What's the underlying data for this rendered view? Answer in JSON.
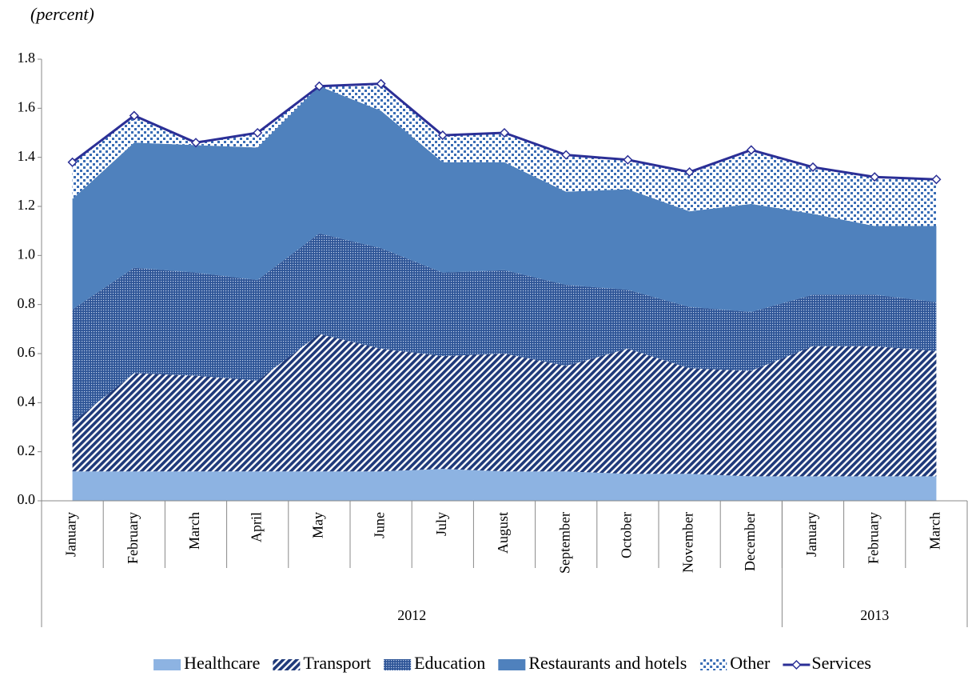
{
  "chart_data": {
    "type": "area",
    "stacked": true,
    "ylabel": "(percent)",
    "categories": [
      "January",
      "February",
      "March",
      "April",
      "May",
      "June",
      "July",
      "August",
      "September",
      "October",
      "November",
      "December",
      "January",
      "February",
      "March"
    ],
    "groups": [
      {
        "label": "2012",
        "size": 12
      },
      {
        "label": "2013",
        "size": 3
      }
    ],
    "ylim": [
      0,
      1.8
    ],
    "yticks": [
      {
        "value": 0,
        "label": "0.0"
      },
      0.2,
      0.4,
      0.6,
      0.8,
      {
        "value": 1,
        "label": "1.0"
      },
      1.2,
      1.4,
      1.6,
      1.8
    ],
    "grid": false,
    "legend": "bottom",
    "series": [
      {
        "name": "Healthcare",
        "color": "#8db3e2",
        "pattern": "solid",
        "values": [
          0.12,
          0.12,
          0.12,
          0.12,
          0.12,
          0.12,
          0.13,
          0.12,
          0.12,
          0.11,
          0.11,
          0.1,
          0.1,
          0.1,
          0.1
        ]
      },
      {
        "name": "Transport",
        "color": "#1f3a7a",
        "pattern": "stripes",
        "values": [
          0.2,
          0.4,
          0.39,
          0.37,
          0.56,
          0.5,
          0.46,
          0.48,
          0.43,
          0.51,
          0.43,
          0.43,
          0.53,
          0.53,
          0.51
        ]
      },
      {
        "name": "Education",
        "color": "#2e5597",
        "pattern": "dots",
        "values": [
          0.46,
          0.43,
          0.42,
          0.41,
          0.41,
          0.41,
          0.34,
          0.34,
          0.33,
          0.24,
          0.25,
          0.24,
          0.21,
          0.21,
          0.2
        ]
      },
      {
        "name": "Restaurants and hotels",
        "color": "#4f81bd",
        "pattern": "solid",
        "values": [
          0.45,
          0.51,
          0.52,
          0.54,
          0.6,
          0.56,
          0.45,
          0.44,
          0.38,
          0.41,
          0.39,
          0.44,
          0.33,
          0.28,
          0.31
        ]
      },
      {
        "name": "Other",
        "color": "#3a6db5",
        "pattern": "checker",
        "values": [
          0.15,
          0.11,
          0.01,
          0.06,
          0.0,
          0.11,
          0.11,
          0.12,
          0.15,
          0.12,
          0.16,
          0.22,
          0.19,
          0.2,
          0.19
        ]
      },
      {
        "name": "Services",
        "color": "#2b2f96",
        "kind": "line",
        "values": [
          1.38,
          1.57,
          1.46,
          1.5,
          1.69,
          1.7,
          1.49,
          1.5,
          1.41,
          1.39,
          1.34,
          1.43,
          1.36,
          1.32,
          1.31
        ]
      }
    ]
  }
}
